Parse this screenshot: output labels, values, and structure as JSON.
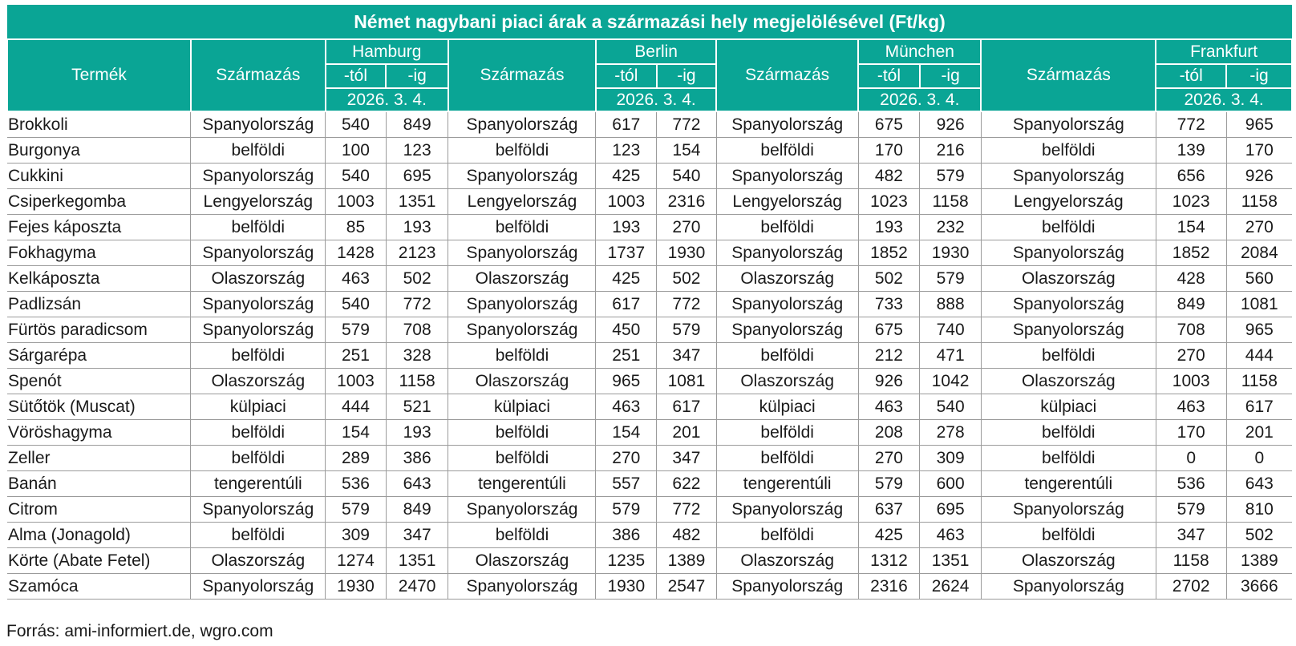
{
  "title": "Német nagybani piaci árak a származási hely megjelölésével (Ft/kg)",
  "headers": {
    "product": "Termék",
    "origin": "Származás",
    "from": "-tól",
    "to": "-ig",
    "date": "2026. 3. 4.",
    "cities": [
      "Hamburg",
      "Berlin",
      "München",
      "Frankfurt"
    ]
  },
  "rows": [
    {
      "product": "Brokkoli",
      "cells": [
        [
          "Spanyolország",
          "540",
          "849"
        ],
        [
          "Spanyolország",
          "617",
          "772"
        ],
        [
          "Spanyolország",
          "675",
          "926"
        ],
        [
          "Spanyolország",
          "772",
          "965"
        ]
      ]
    },
    {
      "product": "Burgonya",
      "cells": [
        [
          "belföldi",
          "100",
          "123"
        ],
        [
          "belföldi",
          "123",
          "154"
        ],
        [
          "belföldi",
          "170",
          "216"
        ],
        [
          "belföldi",
          "139",
          "170"
        ]
      ]
    },
    {
      "product": "Cukkini",
      "cells": [
        [
          "Spanyolország",
          "540",
          "695"
        ],
        [
          "Spanyolország",
          "425",
          "540"
        ],
        [
          "Spanyolország",
          "482",
          "579"
        ],
        [
          "Spanyolország",
          "656",
          "926"
        ]
      ]
    },
    {
      "product": "Csiperkegomba",
      "cells": [
        [
          "Lengyelország",
          "1003",
          "1351"
        ],
        [
          "Lengyelország",
          "1003",
          "2316"
        ],
        [
          "Lengyelország",
          "1023",
          "1158"
        ],
        [
          "Lengyelország",
          "1023",
          "1158"
        ]
      ]
    },
    {
      "product": "Fejes káposzta",
      "cells": [
        [
          "belföldi",
          "85",
          "193"
        ],
        [
          "belföldi",
          "193",
          "270"
        ],
        [
          "belföldi",
          "193",
          "232"
        ],
        [
          "belföldi",
          "154",
          "270"
        ]
      ]
    },
    {
      "product": "Fokhagyma",
      "cells": [
        [
          "Spanyolország",
          "1428",
          "2123"
        ],
        [
          "Spanyolország",
          "1737",
          "1930"
        ],
        [
          "Spanyolország",
          "1852",
          "1930"
        ],
        [
          "Spanyolország",
          "1852",
          "2084"
        ]
      ]
    },
    {
      "product": "Kelkáposzta",
      "cells": [
        [
          "Olaszország",
          "463",
          "502"
        ],
        [
          "Olaszország",
          "425",
          "502"
        ],
        [
          "Olaszország",
          "502",
          "579"
        ],
        [
          "Olaszország",
          "428",
          "560"
        ]
      ]
    },
    {
      "product": "Padlizsán",
      "cells": [
        [
          "Spanyolország",
          "540",
          "772"
        ],
        [
          "Spanyolország",
          "617",
          "772"
        ],
        [
          "Spanyolország",
          "733",
          "888"
        ],
        [
          "Spanyolország",
          "849",
          "1081"
        ]
      ]
    },
    {
      "product": "Fürtös paradicsom",
      "cells": [
        [
          "Spanyolország",
          "579",
          "708"
        ],
        [
          "Spanyolország",
          "450",
          "579"
        ],
        [
          "Spanyolország",
          "675",
          "740"
        ],
        [
          "Spanyolország",
          "708",
          "965"
        ]
      ]
    },
    {
      "product": "Sárgarépa",
      "cells": [
        [
          "belföldi",
          "251",
          "328"
        ],
        [
          "belföldi",
          "251",
          "347"
        ],
        [
          "belföldi",
          "212",
          "471"
        ],
        [
          "belföldi",
          "270",
          "444"
        ]
      ]
    },
    {
      "product": "Spenót",
      "cells": [
        [
          "Olaszország",
          "1003",
          "1158"
        ],
        [
          "Olaszország",
          "965",
          "1081"
        ],
        [
          "Olaszország",
          "926",
          "1042"
        ],
        [
          "Olaszország",
          "1003",
          "1158"
        ]
      ]
    },
    {
      "product": "Sütőtök (Muscat)",
      "cells": [
        [
          "külpiaci",
          "444",
          "521"
        ],
        [
          "külpiaci",
          "463",
          "617"
        ],
        [
          "külpiaci",
          "463",
          "540"
        ],
        [
          "külpiaci",
          "463",
          "617"
        ]
      ]
    },
    {
      "product": "Vöröshagyma",
      "cells": [
        [
          "belföldi",
          "154",
          "193"
        ],
        [
          "belföldi",
          "154",
          "201"
        ],
        [
          "belföldi",
          "208",
          "278"
        ],
        [
          "belföldi",
          "170",
          "201"
        ]
      ]
    },
    {
      "product": "Zeller",
      "cells": [
        [
          "belföldi",
          "289",
          "386"
        ],
        [
          "belföldi",
          "270",
          "347"
        ],
        [
          "belföldi",
          "270",
          "309"
        ],
        [
          "belföldi",
          "0",
          "0"
        ]
      ]
    },
    {
      "product": "Banán",
      "cells": [
        [
          "tengerentúli",
          "536",
          "643"
        ],
        [
          "tengerentúli",
          "557",
          "622"
        ],
        [
          "tengerentúli",
          "579",
          "600"
        ],
        [
          "tengerentúli",
          "536",
          "643"
        ]
      ]
    },
    {
      "product": "Citrom",
      "cells": [
        [
          "Spanyolország",
          "579",
          "849"
        ],
        [
          "Spanyolország",
          "579",
          "772"
        ],
        [
          "Spanyolország",
          "637",
          "695"
        ],
        [
          "Spanyolország",
          "579",
          "810"
        ]
      ]
    },
    {
      "product": "Alma (Jonagold)",
      "cells": [
        [
          "belföldi",
          "309",
          "347"
        ],
        [
          "belföldi",
          "386",
          "482"
        ],
        [
          "belföldi",
          "425",
          "463"
        ],
        [
          "belföldi",
          "347",
          "502"
        ]
      ]
    },
    {
      "product": "Körte (Abate Fetel)",
      "cells": [
        [
          "Olaszország",
          "1274",
          "1351"
        ],
        [
          "Olaszország",
          "1235",
          "1389"
        ],
        [
          "Olaszország",
          "1312",
          "1351"
        ],
        [
          "Olaszország",
          "1158",
          "1389"
        ]
      ]
    },
    {
      "product": "Szamóca",
      "cells": [
        [
          "Spanyolország",
          "1930",
          "2470"
        ],
        [
          "Spanyolország",
          "1930",
          "2547"
        ],
        [
          "Spanyolország",
          "2316",
          "2624"
        ],
        [
          "Spanyolország",
          "2702",
          "3666"
        ]
      ]
    }
  ],
  "source": "Forrás: ami-informiert.de, wgro.com",
  "colors": {
    "header_bg": "#0aa595",
    "header_text": "#ffffff",
    "grid": "#9b9b9b"
  }
}
